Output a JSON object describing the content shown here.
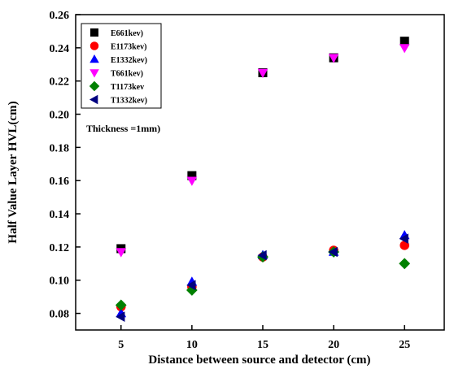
{
  "chart_data": {
    "type": "scatter",
    "xlabel": "Distance between source and detector (cm)",
    "ylabel": "Half Value Layer HVL(cm)",
    "xlim": [
      1.8,
      27.8
    ],
    "ylim": [
      0.07,
      0.26
    ],
    "xticks": [
      5,
      10,
      15,
      20,
      25
    ],
    "xtick_labels": [
      "5",
      "10",
      "15",
      "20",
      "25"
    ],
    "yticks": [
      0.08,
      0.1,
      0.12,
      0.14,
      0.16,
      0.18,
      0.2,
      0.22,
      0.24,
      0.26
    ],
    "ytick_labels": [
      "0.08",
      "0.10",
      "0.12",
      "0.14",
      "0.16",
      "0.18",
      "0.20",
      "0.22",
      "0.24",
      "0.26"
    ],
    "annotation": "Thickness =1mm)",
    "legend_position": "top-left",
    "grid": false,
    "x": [
      5,
      10,
      15,
      20,
      25
    ],
    "series": [
      {
        "name": "E661kev)",
        "marker": "square",
        "color": "#000000",
        "values": [
          0.119,
          0.163,
          0.225,
          0.234,
          0.244
        ]
      },
      {
        "name": "E1173kev)",
        "marker": "circle",
        "color": "#ff0000",
        "values": [
          0.084,
          0.096,
          0.114,
          0.118,
          0.121
        ]
      },
      {
        "name": "E1332kev)",
        "marker": "triangle-up",
        "color": "#0000ff",
        "values": [
          0.08,
          0.099,
          0.115,
          0.117,
          0.127
        ]
      },
      {
        "name": "T661kev)",
        "marker": "triangle-down",
        "color": "#ff00ff",
        "values": [
          0.117,
          0.16,
          0.225,
          0.234,
          0.24
        ]
      },
      {
        "name": "T1173kev",
        "marker": "diamond",
        "color": "#008000",
        "values": [
          0.085,
          0.094,
          0.114,
          0.117,
          0.11
        ]
      },
      {
        "name": "T1332kev)",
        "marker": "triangle-left",
        "color": "#000080",
        "values": [
          0.078,
          0.097,
          0.115,
          0.117,
          0.125
        ]
      }
    ]
  }
}
